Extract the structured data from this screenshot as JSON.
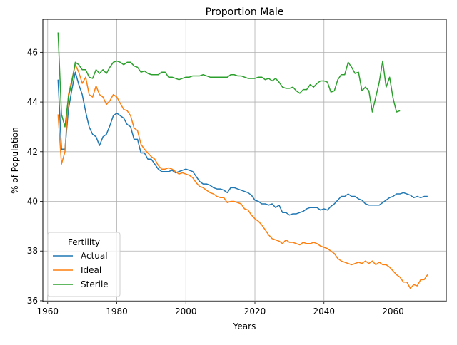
{
  "chart_data": {
    "type": "line",
    "title": "Proportion Male",
    "xlabel": "Years",
    "ylabel": "% of Population",
    "xlim": [
      1958.6,
      2075.4
    ],
    "ylim": [
      35.97,
      47.33
    ],
    "xticks": [
      1960,
      1980,
      2000,
      2020,
      2040,
      2060
    ],
    "yticks": [
      36,
      38,
      40,
      42,
      44,
      46
    ],
    "grid": true,
    "legend": {
      "title": "Fertility",
      "placement": "lower-left"
    },
    "series": [
      {
        "name": "Actual",
        "color": "#1f77b4",
        "points": [
          [
            1963,
            44.9
          ],
          [
            1964,
            42.1
          ],
          [
            1965,
            42.1
          ],
          [
            1966,
            43.7
          ],
          [
            1967,
            44.5
          ],
          [
            1968,
            45.2
          ],
          [
            1969,
            44.7
          ],
          [
            1970,
            44.3
          ],
          [
            1971,
            43.6
          ],
          [
            1972,
            43.0
          ],
          [
            1973,
            42.7
          ],
          [
            1974,
            42.6
          ],
          [
            1975,
            42.25
          ],
          [
            1976,
            42.6
          ],
          [
            1977,
            42.7
          ],
          [
            1978,
            43.05
          ],
          [
            1979,
            43.45
          ],
          [
            1980,
            43.55
          ],
          [
            1981,
            43.45
          ],
          [
            1982,
            43.35
          ],
          [
            1983,
            43.1
          ],
          [
            1984,
            43.0
          ],
          [
            1985,
            42.5
          ],
          [
            1986,
            42.5
          ],
          [
            1987,
            41.95
          ],
          [
            1988,
            41.95
          ],
          [
            1989,
            41.7
          ],
          [
            1990,
            41.7
          ],
          [
            1991,
            41.5
          ],
          [
            1992,
            41.3
          ],
          [
            1993,
            41.2
          ],
          [
            1994,
            41.2
          ],
          [
            1995,
            41.2
          ],
          [
            1996,
            41.25
          ],
          [
            1997,
            41.15
          ],
          [
            1998,
            41.2
          ],
          [
            1999,
            41.25
          ],
          [
            2000,
            41.3
          ],
          [
            2001,
            41.25
          ],
          [
            2002,
            41.2
          ],
          [
            2003,
            41.0
          ],
          [
            2004,
            40.8
          ],
          [
            2005,
            40.7
          ],
          [
            2006,
            40.7
          ],
          [
            2007,
            40.65
          ],
          [
            2008,
            40.55
          ],
          [
            2009,
            40.5
          ],
          [
            2010,
            40.5
          ],
          [
            2011,
            40.45
          ],
          [
            2012,
            40.35
          ],
          [
            2013,
            40.55
          ],
          [
            2014,
            40.55
          ],
          [
            2015,
            40.5
          ],
          [
            2016,
            40.45
          ],
          [
            2017,
            40.4
          ],
          [
            2018,
            40.35
          ],
          [
            2019,
            40.25
          ],
          [
            2020,
            40.05
          ],
          [
            2021,
            40.0
          ],
          [
            2022,
            39.9
          ],
          [
            2023,
            39.9
          ],
          [
            2024,
            39.85
          ],
          [
            2025,
            39.9
          ],
          [
            2026,
            39.75
          ],
          [
            2027,
            39.85
          ],
          [
            2028,
            39.55
          ],
          [
            2029,
            39.55
          ],
          [
            2030,
            39.45
          ],
          [
            2031,
            39.5
          ],
          [
            2032,
            39.5
          ],
          [
            2033,
            39.55
          ],
          [
            2034,
            39.6
          ],
          [
            2035,
            39.7
          ],
          [
            2036,
            39.75
          ],
          [
            2037,
            39.75
          ],
          [
            2038,
            39.75
          ],
          [
            2039,
            39.65
          ],
          [
            2040,
            39.7
          ],
          [
            2041,
            39.65
          ],
          [
            2042,
            39.8
          ],
          [
            2043,
            39.9
          ],
          [
            2044,
            40.05
          ],
          [
            2045,
            40.2
          ],
          [
            2046,
            40.2
          ],
          [
            2047,
            40.3
          ],
          [
            2048,
            40.2
          ],
          [
            2049,
            40.2
          ],
          [
            2050,
            40.1
          ],
          [
            2051,
            40.05
          ],
          [
            2052,
            39.9
          ],
          [
            2053,
            39.85
          ],
          [
            2054,
            39.85
          ],
          [
            2055,
            39.85
          ],
          [
            2056,
            39.85
          ],
          [
            2057,
            39.95
          ],
          [
            2058,
            40.05
          ],
          [
            2059,
            40.15
          ],
          [
            2060,
            40.2
          ],
          [
            2061,
            40.3
          ],
          [
            2062,
            40.3
          ],
          [
            2063,
            40.35
          ],
          [
            2064,
            40.3
          ],
          [
            2065,
            40.25
          ],
          [
            2066,
            40.15
          ],
          [
            2067,
            40.2
          ],
          [
            2068,
            40.15
          ],
          [
            2069,
            40.2
          ],
          [
            2070,
            40.2
          ]
        ]
      },
      {
        "name": "Ideal",
        "color": "#ff7f0e",
        "points": [
          [
            1963,
            43.5
          ],
          [
            1964,
            41.5
          ],
          [
            1965,
            42.0
          ],
          [
            1966,
            44.3
          ],
          [
            1967,
            44.9
          ],
          [
            1968,
            45.5
          ],
          [
            1969,
            45.2
          ],
          [
            1970,
            44.75
          ],
          [
            1971,
            45.0
          ],
          [
            1972,
            44.3
          ],
          [
            1973,
            44.2
          ],
          [
            1974,
            44.65
          ],
          [
            1975,
            44.3
          ],
          [
            1976,
            44.2
          ],
          [
            1977,
            43.9
          ],
          [
            1978,
            44.05
          ],
          [
            1979,
            44.3
          ],
          [
            1980,
            44.2
          ],
          [
            1981,
            43.95
          ],
          [
            1982,
            43.7
          ],
          [
            1983,
            43.65
          ],
          [
            1984,
            43.45
          ],
          [
            1985,
            42.95
          ],
          [
            1986,
            42.85
          ],
          [
            1987,
            42.3
          ],
          [
            1988,
            42.1
          ],
          [
            1989,
            41.95
          ],
          [
            1990,
            41.8
          ],
          [
            1991,
            41.7
          ],
          [
            1992,
            41.45
          ],
          [
            1993,
            41.3
          ],
          [
            1994,
            41.3
          ],
          [
            1995,
            41.35
          ],
          [
            1996,
            41.3
          ],
          [
            1997,
            41.2
          ],
          [
            1998,
            41.1
          ],
          [
            1999,
            41.15
          ],
          [
            2000,
            41.1
          ],
          [
            2001,
            41.05
          ],
          [
            2002,
            40.95
          ],
          [
            2003,
            40.75
          ],
          [
            2004,
            40.6
          ],
          [
            2005,
            40.55
          ],
          [
            2006,
            40.45
          ],
          [
            2007,
            40.35
          ],
          [
            2008,
            40.3
          ],
          [
            2009,
            40.2
          ],
          [
            2010,
            40.15
          ],
          [
            2011,
            40.15
          ],
          [
            2012,
            39.95
          ],
          [
            2013,
            40.0
          ],
          [
            2014,
            40.0
          ],
          [
            2015,
            39.95
          ],
          [
            2016,
            39.9
          ],
          [
            2017,
            39.7
          ],
          [
            2018,
            39.65
          ],
          [
            2019,
            39.45
          ],
          [
            2020,
            39.3
          ],
          [
            2021,
            39.2
          ],
          [
            2022,
            39.05
          ],
          [
            2023,
            38.85
          ],
          [
            2024,
            38.65
          ],
          [
            2025,
            38.5
          ],
          [
            2026,
            38.45
          ],
          [
            2027,
            38.4
          ],
          [
            2028,
            38.3
          ],
          [
            2029,
            38.45
          ],
          [
            2030,
            38.35
          ],
          [
            2031,
            38.35
          ],
          [
            2032,
            38.3
          ],
          [
            2033,
            38.25
          ],
          [
            2034,
            38.35
          ],
          [
            2035,
            38.3
          ],
          [
            2036,
            38.3
          ],
          [
            2037,
            38.35
          ],
          [
            2038,
            38.3
          ],
          [
            2039,
            38.2
          ],
          [
            2040,
            38.15
          ],
          [
            2041,
            38.1
          ],
          [
            2042,
            38.0
          ],
          [
            2043,
            37.9
          ],
          [
            2044,
            37.7
          ],
          [
            2045,
            37.6
          ],
          [
            2046,
            37.55
          ],
          [
            2047,
            37.5
          ],
          [
            2048,
            37.45
          ],
          [
            2049,
            37.5
          ],
          [
            2050,
            37.55
          ],
          [
            2051,
            37.5
          ],
          [
            2052,
            37.6
          ],
          [
            2053,
            37.5
          ],
          [
            2054,
            37.6
          ],
          [
            2055,
            37.45
          ],
          [
            2056,
            37.55
          ],
          [
            2057,
            37.45
          ],
          [
            2058,
            37.45
          ],
          [
            2059,
            37.35
          ],
          [
            2060,
            37.2
          ],
          [
            2061,
            37.05
          ],
          [
            2062,
            36.95
          ],
          [
            2063,
            36.75
          ],
          [
            2064,
            36.75
          ],
          [
            2065,
            36.5
          ],
          [
            2066,
            36.65
          ],
          [
            2067,
            36.6
          ],
          [
            2068,
            36.85
          ],
          [
            2069,
            36.85
          ],
          [
            2070,
            37.05
          ]
        ]
      },
      {
        "name": "Sterile",
        "color": "#2ca02c",
        "points": [
          [
            1963,
            46.8
          ],
          [
            1964,
            43.5
          ],
          [
            1965,
            43.0
          ],
          [
            1966,
            44.2
          ],
          [
            1967,
            44.8
          ],
          [
            1968,
            45.6
          ],
          [
            1969,
            45.5
          ],
          [
            1970,
            45.3
          ],
          [
            1971,
            45.3
          ],
          [
            1972,
            45.0
          ],
          [
            1973,
            44.95
          ],
          [
            1974,
            45.3
          ],
          [
            1975,
            45.15
          ],
          [
            1976,
            45.3
          ],
          [
            1977,
            45.15
          ],
          [
            1978,
            45.4
          ],
          [
            1979,
            45.6
          ],
          [
            1980,
            45.65
          ],
          [
            1981,
            45.6
          ],
          [
            1982,
            45.5
          ],
          [
            1983,
            45.6
          ],
          [
            1984,
            45.6
          ],
          [
            1985,
            45.45
          ],
          [
            1986,
            45.4
          ],
          [
            1987,
            45.2
          ],
          [
            1988,
            45.25
          ],
          [
            1989,
            45.15
          ],
          [
            1990,
            45.1
          ],
          [
            1991,
            45.1
          ],
          [
            1992,
            45.1
          ],
          [
            1993,
            45.2
          ],
          [
            1994,
            45.2
          ],
          [
            1995,
            45.0
          ],
          [
            1996,
            45.0
          ],
          [
            1997,
            44.95
          ],
          [
            1998,
            44.9
          ],
          [
            1999,
            44.95
          ],
          [
            2000,
            45.0
          ],
          [
            2001,
            45.0
          ],
          [
            2002,
            45.05
          ],
          [
            2003,
            45.05
          ],
          [
            2004,
            45.05
          ],
          [
            2005,
            45.1
          ],
          [
            2006,
            45.05
          ],
          [
            2007,
            45.0
          ],
          [
            2008,
            45.0
          ],
          [
            2009,
            45.0
          ],
          [
            2010,
            45.0
          ],
          [
            2011,
            45.0
          ],
          [
            2012,
            45.0
          ],
          [
            2013,
            45.1
          ],
          [
            2014,
            45.1
          ],
          [
            2015,
            45.05
          ],
          [
            2016,
            45.05
          ],
          [
            2017,
            45.0
          ],
          [
            2018,
            44.95
          ],
          [
            2019,
            44.95
          ],
          [
            2020,
            44.95
          ],
          [
            2021,
            45.0
          ],
          [
            2022,
            45.0
          ],
          [
            2023,
            44.9
          ],
          [
            2024,
            44.95
          ],
          [
            2025,
            44.85
          ],
          [
            2026,
            44.95
          ],
          [
            2027,
            44.8
          ],
          [
            2028,
            44.6
          ],
          [
            2029,
            44.55
          ],
          [
            2030,
            44.55
          ],
          [
            2031,
            44.6
          ],
          [
            2032,
            44.45
          ],
          [
            2033,
            44.35
          ],
          [
            2034,
            44.5
          ],
          [
            2035,
            44.5
          ],
          [
            2036,
            44.7
          ],
          [
            2037,
            44.6
          ],
          [
            2038,
            44.75
          ],
          [
            2039,
            44.85
          ],
          [
            2040,
            44.85
          ],
          [
            2041,
            44.8
          ],
          [
            2042,
            44.4
          ],
          [
            2043,
            44.45
          ],
          [
            2044,
            44.9
          ],
          [
            2045,
            45.1
          ],
          [
            2046,
            45.1
          ],
          [
            2047,
            45.6
          ],
          [
            2048,
            45.4
          ],
          [
            2049,
            45.15
          ],
          [
            2050,
            45.2
          ],
          [
            2051,
            44.45
          ],
          [
            2052,
            44.6
          ],
          [
            2053,
            44.45
          ],
          [
            2054,
            43.6
          ],
          [
            2055,
            44.2
          ],
          [
            2056,
            44.8
          ],
          [
            2057,
            45.65
          ],
          [
            2058,
            44.6
          ],
          [
            2059,
            45.0
          ],
          [
            2060,
            44.15
          ],
          [
            2061,
            43.6
          ],
          [
            2062,
            43.65
          ]
        ]
      }
    ]
  }
}
